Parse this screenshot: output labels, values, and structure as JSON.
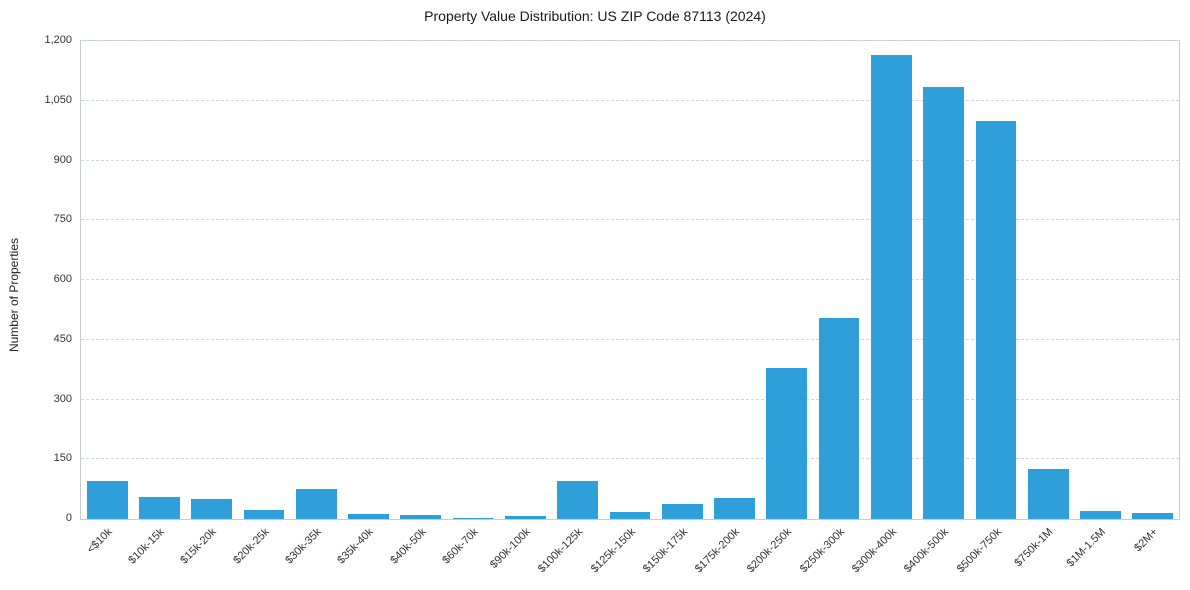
{
  "chart_data": {
    "type": "bar",
    "title": "Property Value Distribution: US ZIP Code 87113 (2024)",
    "xlabel": "",
    "ylabel": "Number of Properties",
    "categories": [
      "<$10k",
      "$10k-15k",
      "$15k-20k",
      "$20k-25k",
      "$30k-35k",
      "$35k-40k",
      "$40k-50k",
      "$60k-70k",
      "$90k-100k",
      "$100k-125k",
      "$125k-150k",
      "$150k-175k",
      "$175k-200k",
      "$200k-250k",
      "$250k-300k",
      "$300k-400k",
      "$400k-500k",
      "$500k-750k",
      "$750k-1M",
      "$1M-1.5M",
      "$2M+"
    ],
    "values": [
      95,
      55,
      50,
      22,
      75,
      12,
      10,
      3,
      8,
      95,
      18,
      38,
      52,
      380,
      505,
      1165,
      1085,
      1000,
      125,
      20,
      14
    ],
    "ylim": [
      0,
      1200
    ],
    "yticks": [
      0,
      150,
      300,
      450,
      600,
      750,
      900,
      1050,
      1200
    ],
    "ytick_labels": [
      "0",
      "150",
      "300",
      "450",
      "600",
      "750",
      "900",
      "1,050",
      "1,200"
    ],
    "bar_color": "#2e9fd8",
    "grid": "horizontal-dashed",
    "legend": "none"
  }
}
